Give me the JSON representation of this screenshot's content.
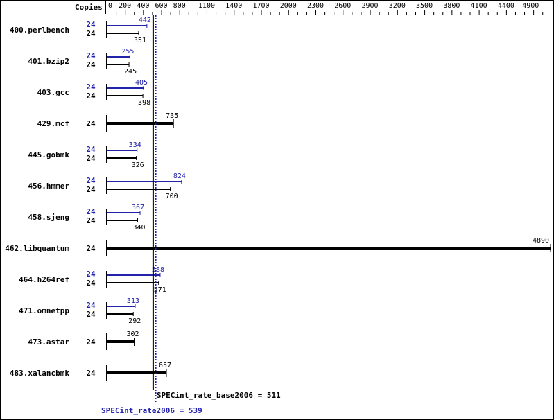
{
  "chart_data": {
    "type": "bar",
    "orientation": "horizontal",
    "copies_label": "Copies",
    "ticks": [
      0,
      200,
      400,
      600,
      800,
      1100,
      1400,
      1700,
      2000,
      2300,
      2600,
      2900,
      3200,
      3500,
      3800,
      4100,
      4400,
      4900
    ],
    "xlim": [
      0,
      4890
    ],
    "colors": {
      "base": "#000000",
      "peak": "#2222aa"
    },
    "benchmarks": [
      {
        "name": "400.perlbench",
        "copies_peak": "24",
        "peak": 442,
        "copies_base": "24",
        "base": 351
      },
      {
        "name": "401.bzip2",
        "copies_peak": "24",
        "peak": 255,
        "copies_base": "24",
        "base": 245
      },
      {
        "name": "403.gcc",
        "copies_peak": "24",
        "peak": 405,
        "copies_base": "24",
        "base": 398
      },
      {
        "name": "429.mcf",
        "copies_base": "24",
        "base": 735
      },
      {
        "name": "445.gobmk",
        "copies_peak": "24",
        "peak": 334,
        "copies_base": "24",
        "base": 326
      },
      {
        "name": "456.hmmer",
        "copies_peak": "24",
        "peak": 824,
        "copies_base": "24",
        "base": 700
      },
      {
        "name": "458.sjeng",
        "copies_peak": "24",
        "peak": 367,
        "copies_base": "24",
        "base": 340
      },
      {
        "name": "462.libquantum",
        "copies_base": "24",
        "base": 4890
      },
      {
        "name": "464.h264ref",
        "copies_peak": "24",
        "peak": 588,
        "copies_base": "24",
        "base": 571
      },
      {
        "name": "471.omnetpp",
        "copies_peak": "24",
        "peak": 313,
        "copies_base": "24",
        "base": 292
      },
      {
        "name": "473.astar",
        "copies_base": "24",
        "base": 302
      },
      {
        "name": "483.xalancbmk",
        "copies_base": "24",
        "base": 657
      }
    ],
    "base_ref": {
      "label": "SPECint_rate_base2006 = 511",
      "value": 511
    },
    "peak_ref": {
      "label": "SPECint_rate2006 = 539",
      "value": 539
    }
  }
}
